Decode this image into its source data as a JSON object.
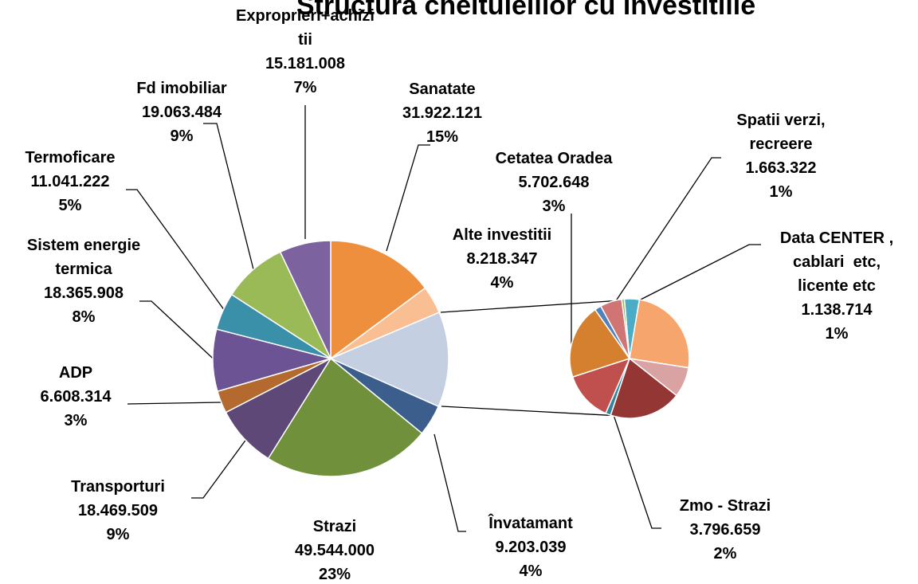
{
  "chart_data": [
    {
      "type": "pie",
      "title": "Structura cheltuielilor cu investitiile",
      "categories": [
        "Sanatate",
        "Alte investitii",
        null,
        "Învatamant",
        "Strazi",
        "Transporturi",
        "ADP",
        "Sistem energie\ntermica",
        "Termoficare",
        "Fd imobiliar",
        "Exproprieri+achizi\ntii"
      ],
      "values": [
        31922121,
        8218347,
        null,
        9203039,
        49544000,
        18469509,
        6608314,
        18365908,
        11041222,
        19063484,
        15181008
      ],
      "value_labels": [
        "31.922.121",
        "8.218.347",
        null,
        "9.203.039",
        "49.544.000",
        "18.469.509",
        "6.608.314",
        "18.365.908",
        "11.041.222",
        "19.063.484",
        "15.181.008"
      ],
      "percent_labels": [
        "15%",
        "4%",
        null,
        "4%",
        "23%",
        "9%",
        "3%",
        "8%",
        "5%",
        "9%",
        "7%"
      ],
      "colors": [
        "#ee8f3e",
        "#f9bf93",
        "#c4cfe2",
        "#3b5e8c",
        "#71903c",
        "#5e4878",
        "#b4692e",
        "#6c5494",
        "#3a8fa9",
        "#9aba58",
        "#7d62a0"
      ]
    },
    {
      "type": "pie",
      "categories": [
        "Data CENTER ,\ncablari  etc,\nlicente etc",
        null,
        null,
        null,
        null,
        "Zmo - Strazi",
        "Cetatea Oradea",
        null,
        "Spatii verzi,\nrecreere",
        null
      ],
      "values": [
        1138714,
        7000000,
        2300000,
        5500000,
        400000,
        3796659,
        5702648,
        500000,
        1663322,
        200000
      ],
      "value_labels": [
        "1.138.714",
        null,
        null,
        null,
        null,
        "3.796.659",
        "5.702.648",
        null,
        "1.663.322",
        null
      ],
      "percent_labels": [
        "1%",
        null,
        null,
        null,
        null,
        "2%",
        "3%",
        null,
        "1%",
        null
      ],
      "colors": [
        "#4bacc6",
        "#f6a66c",
        "#d9a3a3",
        "#943634",
        "#31859c",
        "#c0504d",
        "#d5802f",
        "#4f81bd",
        "#d07474",
        "#9bbb59"
      ]
    }
  ]
}
